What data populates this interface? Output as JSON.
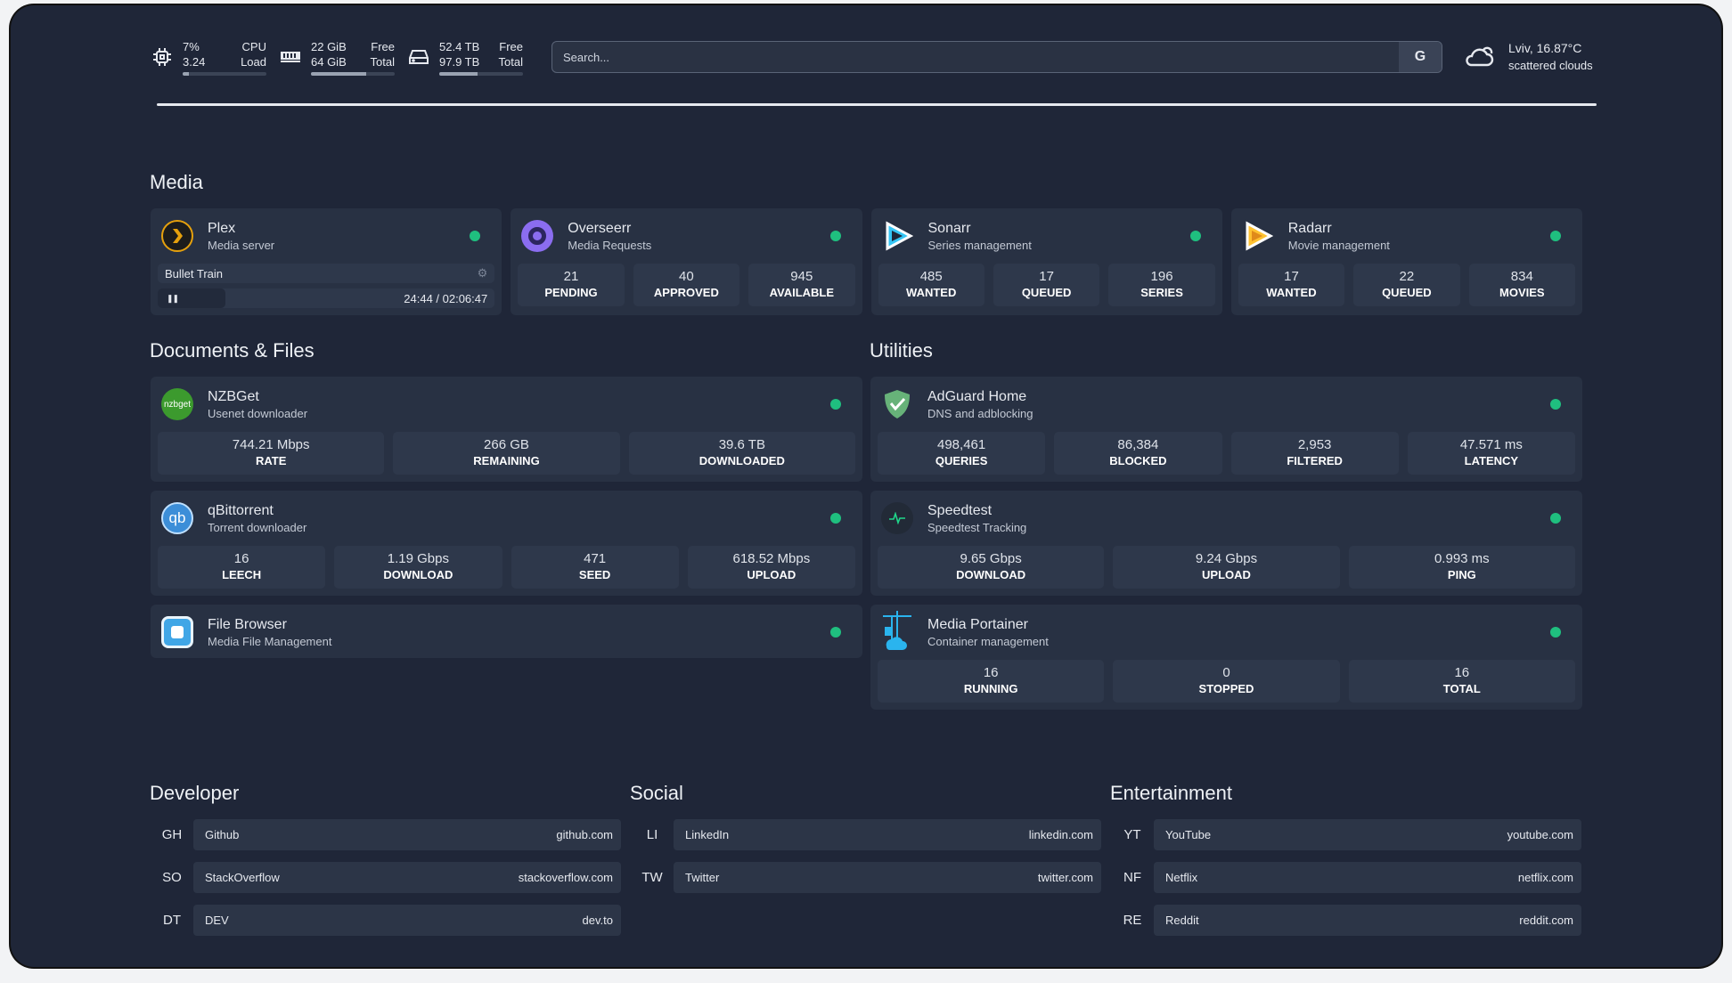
{
  "system": {
    "cpu": {
      "value": "7%",
      "value_label": "CPU",
      "sub": "3.24",
      "sub_label": "Load",
      "percent": 7
    },
    "memory": {
      "value": "22 GiB",
      "value_label": "Free",
      "sub": "64 GiB",
      "sub_label": "Total",
      "percent": 66
    },
    "disk": {
      "value": "52.4 TB",
      "value_label": "Free",
      "sub": "97.9 TB",
      "sub_label": "Total",
      "percent": 46
    }
  },
  "search": {
    "placeholder": "Search...",
    "button": "G"
  },
  "weather": {
    "location": "Lviv, 16.87°C",
    "condition": "scattered clouds",
    "icon": "cloud-sun-icon"
  },
  "sections": {
    "media": "Media",
    "documents": "Documents & Files",
    "utilities": "Utilities",
    "developer": "Developer",
    "social": "Social",
    "entertainment": "Entertainment"
  },
  "status_color": "#1fbf7f",
  "media": [
    {
      "name": "Plex",
      "desc": "Media server",
      "icon": "plex-icon",
      "now_playing": {
        "title": "Bullet Train",
        "time": "24:44 / 02:06:47",
        "progress": 20
      }
    },
    {
      "name": "Overseerr",
      "desc": "Media Requests",
      "icon": "overseerr-icon",
      "stats": [
        {
          "v": "21",
          "l": "PENDING"
        },
        {
          "v": "40",
          "l": "APPROVED"
        },
        {
          "v": "945",
          "l": "AVAILABLE"
        }
      ]
    },
    {
      "name": "Sonarr",
      "desc": "Series management",
      "icon": "sonarr-icon",
      "stats": [
        {
          "v": "485",
          "l": "WANTED"
        },
        {
          "v": "17",
          "l": "QUEUED"
        },
        {
          "v": "196",
          "l": "SERIES"
        }
      ]
    },
    {
      "name": "Radarr",
      "desc": "Movie management",
      "icon": "radarr-icon",
      "stats": [
        {
          "v": "17",
          "l": "WANTED"
        },
        {
          "v": "22",
          "l": "QUEUED"
        },
        {
          "v": "834",
          "l": "MOVIES"
        }
      ]
    }
  ],
  "documents": [
    {
      "name": "NZBGet",
      "desc": "Usenet downloader",
      "icon": "nzbget-icon",
      "icon_text": "nzbget",
      "stats": [
        {
          "v": "744.21 Mbps",
          "l": "RATE"
        },
        {
          "v": "266 GB",
          "l": "REMAINING"
        },
        {
          "v": "39.6 TB",
          "l": "DOWNLOADED"
        }
      ]
    },
    {
      "name": "qBittorrent",
      "desc": "Torrent downloader",
      "icon": "qbittorrent-icon",
      "icon_text": "qb",
      "stats": [
        {
          "v": "16",
          "l": "LEECH"
        },
        {
          "v": "1.19 Gbps",
          "l": "DOWNLOAD"
        },
        {
          "v": "471",
          "l": "SEED"
        },
        {
          "v": "618.52 Mbps",
          "l": "UPLOAD"
        }
      ]
    },
    {
      "name": "File Browser",
      "desc": "Media File Management",
      "icon": "file-browser-icon"
    }
  ],
  "utilities": [
    {
      "name": "AdGuard Home",
      "desc": "DNS and adblocking",
      "icon": "adguard-shield-icon",
      "stats": [
        {
          "v": "498,461",
          "l": "QUERIES"
        },
        {
          "v": "86,384",
          "l": "BLOCKED"
        },
        {
          "v": "2,953",
          "l": "FILTERED"
        },
        {
          "v": "47.571 ms",
          "l": "LATENCY"
        }
      ]
    },
    {
      "name": "Speedtest",
      "desc": "Speedtest Tracking",
      "icon": "speedtest-pulse-icon",
      "stats": [
        {
          "v": "9.65 Gbps",
          "l": "DOWNLOAD"
        },
        {
          "v": "9.24 Gbps",
          "l": "UPLOAD"
        },
        {
          "v": "0.993 ms",
          "l": "PING"
        }
      ]
    },
    {
      "name": "Media Portainer",
      "desc": "Container management",
      "icon": "portainer-icon",
      "stats": [
        {
          "v": "16",
          "l": "RUNNING"
        },
        {
          "v": "0",
          "l": "STOPPED"
        },
        {
          "v": "16",
          "l": "TOTAL"
        }
      ]
    }
  ],
  "bookmarks": {
    "developer": [
      {
        "abbr": "GH",
        "name": "Github",
        "url": "github.com"
      },
      {
        "abbr": "SO",
        "name": "StackOverflow",
        "url": "stackoverflow.com"
      },
      {
        "abbr": "DT",
        "name": "DEV",
        "url": "dev.to"
      }
    ],
    "social": [
      {
        "abbr": "LI",
        "name": "LinkedIn",
        "url": "linkedin.com"
      },
      {
        "abbr": "TW",
        "name": "Twitter",
        "url": "twitter.com"
      }
    ],
    "entertainment": [
      {
        "abbr": "YT",
        "name": "YouTube",
        "url": "youtube.com"
      },
      {
        "abbr": "NF",
        "name": "Netflix",
        "url": "netflix.com"
      },
      {
        "abbr": "RE",
        "name": "Reddit",
        "url": "reddit.com"
      }
    ]
  }
}
